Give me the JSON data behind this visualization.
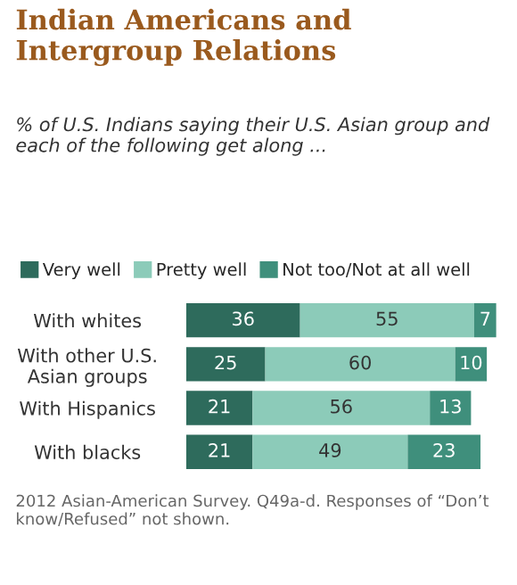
{
  "chart_data": {
    "type": "bar",
    "orientation": "horizontal",
    "stacked": true,
    "data_labels": true,
    "legend": "top",
    "grid": false,
    "tick_labels": "y",
    "title": "Indian Americans and Intergroup Relations",
    "subtitle": "% of U.S. Indians saying their U.S. Asian group and each of the following get along ...",
    "categories": [
      "With whites",
      "With other U.S.\nAsian groups",
      "With Hispanics",
      "With blacks"
    ],
    "series": [
      {
        "name": "Very well",
        "color": "#2e6b5c",
        "values": [
          36,
          25,
          21,
          21
        ]
      },
      {
        "name": "Pretty well",
        "color": "#8ccbb9",
        "values": [
          55,
          60,
          56,
          49
        ]
      },
      {
        "name": "Not too/Not at all well",
        "color": "#3f8f7c",
        "values": [
          7,
          10,
          13,
          23
        ]
      }
    ],
    "annotations": [
      "2012 Asian-American Survey. Q49a-d. Responses of “Don’t know/Refused” not shown."
    ]
  }
}
